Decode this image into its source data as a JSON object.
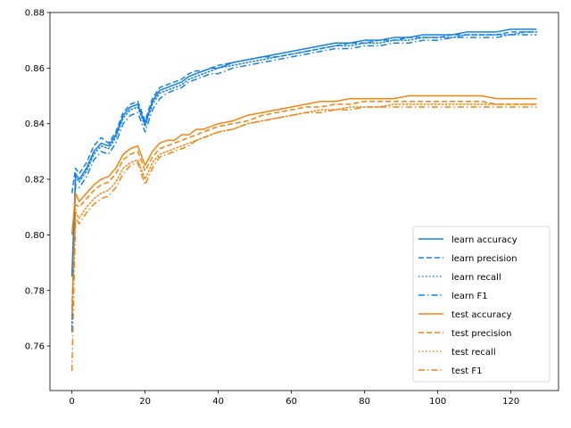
{
  "chart_data": {
    "type": "line",
    "title": "",
    "xlabel": "",
    "ylabel": "",
    "xlim": [
      -6,
      133
    ],
    "ylim": [
      0.744,
      0.88
    ],
    "x_ticks": [
      0,
      20,
      40,
      60,
      80,
      100,
      120
    ],
    "y_ticks": [
      0.76,
      0.78,
      0.8,
      0.82,
      0.84,
      0.86,
      0.88
    ],
    "grid": false,
    "legend_position": "lower-right",
    "colors": {
      "learn": "#1f77b4",
      "test": "#ff7f0e",
      "learn_display": "#1380e8",
      "test_display": "#f5830a"
    },
    "x": [
      0,
      1,
      2,
      4,
      6,
      8,
      10,
      12,
      14,
      16,
      18,
      20,
      22,
      24,
      26,
      28,
      30,
      32,
      34,
      36,
      38,
      40,
      44,
      48,
      52,
      56,
      60,
      64,
      68,
      72,
      76,
      80,
      84,
      88,
      92,
      96,
      100,
      104,
      108,
      112,
      116,
      120,
      124,
      127
    ],
    "series": [
      {
        "name": "learn accuracy",
        "group": "learn",
        "dash": "solid",
        "values": [
          0.785,
          0.822,
          0.82,
          0.824,
          0.83,
          0.833,
          0.832,
          0.836,
          0.843,
          0.846,
          0.847,
          0.84,
          0.848,
          0.852,
          0.853,
          0.854,
          0.855,
          0.857,
          0.858,
          0.859,
          0.86,
          0.86,
          0.862,
          0.863,
          0.864,
          0.865,
          0.866,
          0.867,
          0.868,
          0.869,
          0.869,
          0.87,
          0.87,
          0.871,
          0.871,
          0.872,
          0.872,
          0.872,
          0.873,
          0.873,
          0.873,
          0.874,
          0.874,
          0.874
        ]
      },
      {
        "name": "learn precision",
        "group": "learn",
        "dash": "dashed",
        "values": [
          0.815,
          0.824,
          0.822,
          0.826,
          0.832,
          0.835,
          0.833,
          0.837,
          0.844,
          0.847,
          0.848,
          0.841,
          0.849,
          0.853,
          0.854,
          0.855,
          0.856,
          0.858,
          0.859,
          0.859,
          0.86,
          0.861,
          0.862,
          0.863,
          0.864,
          0.864,
          0.865,
          0.866,
          0.867,
          0.868,
          0.869,
          0.869,
          0.87,
          0.87,
          0.871,
          0.871,
          0.871,
          0.872,
          0.872,
          0.872,
          0.872,
          0.873,
          0.873,
          0.873
        ]
      },
      {
        "name": "learn recall",
        "group": "learn",
        "dash": "dotted",
        "values": [
          0.767,
          0.821,
          0.819,
          0.823,
          0.829,
          0.832,
          0.831,
          0.835,
          0.842,
          0.845,
          0.846,
          0.839,
          0.847,
          0.851,
          0.852,
          0.853,
          0.854,
          0.856,
          0.857,
          0.858,
          0.859,
          0.86,
          0.861,
          0.862,
          0.863,
          0.864,
          0.865,
          0.866,
          0.867,
          0.868,
          0.868,
          0.869,
          0.869,
          0.87,
          0.87,
          0.871,
          0.871,
          0.871,
          0.872,
          0.872,
          0.872,
          0.872,
          0.873,
          0.873
        ]
      },
      {
        "name": "learn F1",
        "group": "learn",
        "dash": "dashdot",
        "values": [
          0.765,
          0.818,
          0.817,
          0.821,
          0.827,
          0.83,
          0.829,
          0.833,
          0.84,
          0.843,
          0.844,
          0.837,
          0.845,
          0.849,
          0.851,
          0.852,
          0.853,
          0.855,
          0.856,
          0.857,
          0.858,
          0.858,
          0.86,
          0.861,
          0.862,
          0.863,
          0.864,
          0.865,
          0.866,
          0.867,
          0.867,
          0.868,
          0.868,
          0.869,
          0.869,
          0.87,
          0.87,
          0.871,
          0.871,
          0.871,
          0.871,
          0.872,
          0.872,
          0.872
        ]
      },
      {
        "name": "test accuracy",
        "group": "test",
        "dash": "solid",
        "values": [
          0.8,
          0.815,
          0.812,
          0.815,
          0.818,
          0.82,
          0.821,
          0.824,
          0.829,
          0.831,
          0.832,
          0.825,
          0.83,
          0.833,
          0.834,
          0.834,
          0.836,
          0.836,
          0.838,
          0.838,
          0.839,
          0.84,
          0.841,
          0.843,
          0.844,
          0.845,
          0.846,
          0.847,
          0.848,
          0.848,
          0.849,
          0.849,
          0.849,
          0.849,
          0.85,
          0.85,
          0.85,
          0.85,
          0.85,
          0.85,
          0.849,
          0.849,
          0.849,
          0.849
        ]
      },
      {
        "name": "test precision",
        "group": "test",
        "dash": "dashed",
        "values": [
          0.773,
          0.811,
          0.81,
          0.813,
          0.816,
          0.818,
          0.819,
          0.822,
          0.827,
          0.829,
          0.83,
          0.823,
          0.828,
          0.831,
          0.832,
          0.833,
          0.834,
          0.835,
          0.836,
          0.837,
          0.838,
          0.839,
          0.84,
          0.841,
          0.843,
          0.844,
          0.845,
          0.846,
          0.846,
          0.847,
          0.847,
          0.848,
          0.848,
          0.848,
          0.848,
          0.848,
          0.848,
          0.848,
          0.848,
          0.848,
          0.847,
          0.847,
          0.847,
          0.847
        ]
      },
      {
        "name": "test recall",
        "group": "test",
        "dash": "dotted",
        "values": [
          0.772,
          0.808,
          0.806,
          0.81,
          0.813,
          0.815,
          0.816,
          0.819,
          0.824,
          0.826,
          0.827,
          0.82,
          0.826,
          0.829,
          0.83,
          0.831,
          0.832,
          0.833,
          0.834,
          0.835,
          0.836,
          0.837,
          0.838,
          0.84,
          0.841,
          0.842,
          0.843,
          0.844,
          0.845,
          0.845,
          0.846,
          0.846,
          0.846,
          0.847,
          0.847,
          0.847,
          0.847,
          0.847,
          0.847,
          0.847,
          0.847,
          0.847,
          0.847,
          0.847
        ]
      },
      {
        "name": "test F1",
        "group": "test",
        "dash": "dashdot",
        "values": [
          0.751,
          0.806,
          0.804,
          0.808,
          0.811,
          0.813,
          0.814,
          0.817,
          0.822,
          0.825,
          0.826,
          0.818,
          0.824,
          0.828,
          0.829,
          0.83,
          0.831,
          0.832,
          0.834,
          0.835,
          0.836,
          0.837,
          0.838,
          0.84,
          0.841,
          0.842,
          0.843,
          0.844,
          0.844,
          0.845,
          0.845,
          0.846,
          0.846,
          0.846,
          0.846,
          0.846,
          0.846,
          0.846,
          0.846,
          0.846,
          0.846,
          0.846,
          0.846,
          0.846
        ]
      }
    ]
  }
}
